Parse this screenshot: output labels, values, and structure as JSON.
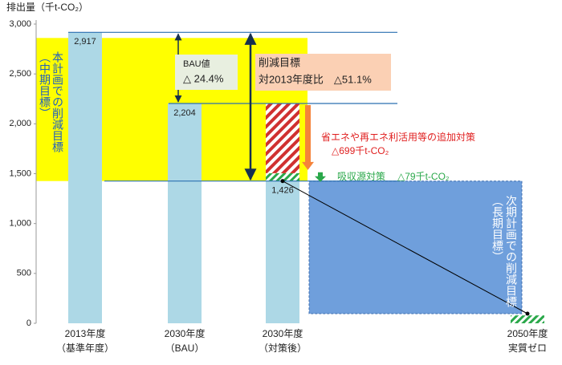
{
  "chart_data": {
    "type": "bar",
    "y_axis_label": "排出量（千t-CO₂）",
    "categories": [
      "2013年度",
      "2030年度",
      "2030年度",
      "2050年度"
    ],
    "category_notes": [
      "（基準年度）",
      "（BAU）",
      "（対策後）",
      "実質ゼロ"
    ],
    "emissions": {
      "values": [
        2917,
        2204,
        1426,
        null
      ],
      "value_labels": [
        "2,917",
        "2,204",
        "1,426",
        null
      ],
      "color": "#add8e6"
    },
    "absorption": {
      "values": [
        null,
        null,
        79,
        79
      ],
      "color": "#2aa84a",
      "label": "吸収源対策",
      "value_label": "△79千t-CO₂"
    },
    "additional_measures": {
      "values": [
        null,
        null,
        699,
        null
      ],
      "color": "#d03030",
      "label": "省エネや再エネ利活用等の追加対策",
      "value_label": "△699千t-CO₂"
    },
    "ylim": [
      0,
      3000
    ],
    "yticks": [
      0,
      500,
      {
        "value": 1000,
        "label": "1,000"
      },
      {
        "value": 1500,
        "label": "1,500"
      },
      {
        "value": 2000,
        "label": "2,000"
      },
      {
        "value": 2500,
        "label": "2,500"
      },
      {
        "value": 3000,
        "label": "3,000"
      }
    ],
    "annotations": {
      "bau": {
        "label": "BAU値",
        "value": "△ 24.4%"
      },
      "target": {
        "label": "削減目標",
        "value": "対2013年度比　△51.1%"
      },
      "mid_term": [
        "本計画での削減目標",
        "（中期目標）"
      ],
      "long_term": [
        "次期計画での削減目標",
        "（長期目標）"
      ]
    }
  }
}
